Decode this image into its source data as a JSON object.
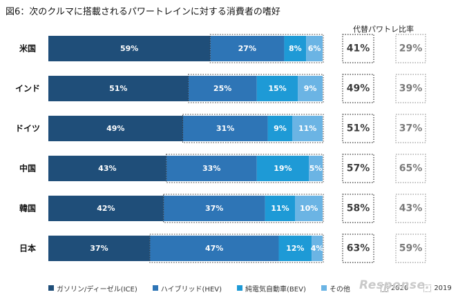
{
  "title": "図6：次のクルマに搭載されるパワートレインに対する消費者の嗜好",
  "alt_header": "代替パワトレ比率",
  "colors": {
    "ice": "#1f4e79",
    "hev": "#2e75b6",
    "bev": "#1e9ad6",
    "other": "#6bb4e4",
    "box2020": "#333333",
    "box2019": "#999999"
  },
  "chart_data": {
    "type": "bar",
    "stacked": true,
    "orientation": "horizontal",
    "categories": [
      "米国",
      "インド",
      "ドイツ",
      "中国",
      "韓国",
      "日本"
    ],
    "series": [
      {
        "name": "ガソリン/ディーゼル(ICE)",
        "values": [
          59,
          51,
          49,
          43,
          42,
          37
        ]
      },
      {
        "name": "ハイブリッド(HEV)",
        "values": [
          27,
          25,
          31,
          33,
          37,
          47
        ]
      },
      {
        "name": "純電気自動車(BEV)",
        "values": [
          8,
          15,
          9,
          19,
          11,
          12
        ]
      },
      {
        "name": "その他",
        "values": [
          6,
          9,
          11,
          5,
          10,
          4
        ]
      }
    ],
    "value_labels": [
      [
        "59%",
        "27%",
        "8%",
        "6%"
      ],
      [
        "51%",
        "25%",
        "15%",
        "9%"
      ],
      [
        "49%",
        "31%",
        "9%",
        "11%"
      ],
      [
        "43%",
        "33%",
        "19%",
        "5%"
      ],
      [
        "42%",
        "37%",
        "11%",
        "10%"
      ],
      [
        "37%",
        "47%",
        "12%",
        "4%"
      ]
    ],
    "xlim": [
      0,
      100
    ],
    "alt_ratio": {
      "2020": [
        "41%",
        "49%",
        "51%",
        "57%",
        "58%",
        "63%"
      ],
      "2019": [
        "29%",
        "39%",
        "37%",
        "65%",
        "43%",
        "59%"
      ]
    }
  },
  "legend": {
    "ice": "ガソリン/ディーゼル(ICE)",
    "hev": "ハイブリッド(HEV)",
    "bev": "純電気自動車(BEV)",
    "other": "その他",
    "y2020": "2020",
    "y2019": "2019"
  },
  "watermark": "Response."
}
